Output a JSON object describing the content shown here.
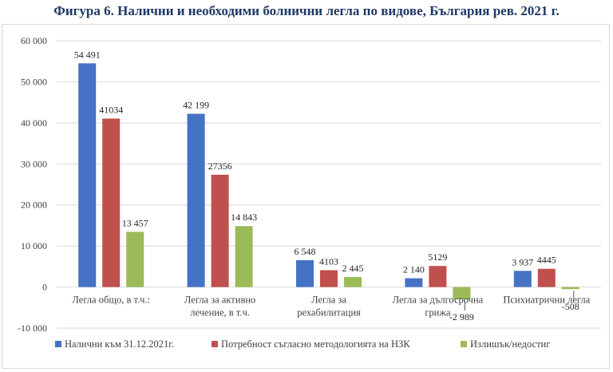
{
  "title": "Фигура 6. Налични и необходими болнични легла по видове, България рев. 2021 г.",
  "chart_data": {
    "type": "bar",
    "title": "Фигура 6. Налични и необходими болнични легла по видове, България рев. 2021 г.",
    "categories": [
      [
        "Легла общо, в т.ч.:"
      ],
      [
        "Легла за активно",
        "лечение, в т.ч."
      ],
      [
        "Легла за",
        "рехабилитация"
      ],
      [
        "Легла за дългосрочна",
        "грижа"
      ],
      [
        "Психиатрични легла"
      ]
    ],
    "series": [
      {
        "name": "Налични към 31.12.2021г.",
        "color": "#4472c4",
        "values": [
          54491,
          42199,
          6548,
          2140,
          3937
        ],
        "labels": [
          "54 491",
          "42 199",
          "6 548",
          "2 140",
          "3 937"
        ]
      },
      {
        "name": "Потребност съгласно методологията на НЗК",
        "color": "#c0504d",
        "values": [
          41034,
          27356,
          4103,
          5129,
          4445
        ],
        "labels": [
          "41034",
          "27356",
          "4103",
          "5129",
          "4445"
        ]
      },
      {
        "name": "Излишък/недостиг",
        "color": "#9bbb59",
        "values": [
          13457,
          14843,
          2445,
          -2989,
          -508
        ],
        "labels": [
          "13 457",
          "14 843",
          "2 445",
          "-2 989",
          "-508"
        ]
      }
    ],
    "ylim": [
      -10000,
      60000
    ],
    "yticks": [
      -10000,
      0,
      10000,
      20000,
      30000,
      40000,
      50000,
      60000
    ],
    "ytick_labels": [
      "-10 000",
      "0",
      "10 000",
      "20 000",
      "30 000",
      "40 000",
      "50 000",
      "60 000"
    ],
    "xlabel": "",
    "ylabel": "",
    "grid": true,
    "legend": "bottom"
  }
}
